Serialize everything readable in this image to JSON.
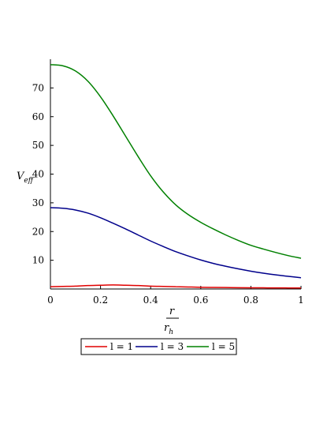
{
  "chart_data": {
    "type": "line",
    "title": "",
    "xlabel": {
      "numerator": "r",
      "denominator": "r",
      "denominator_sub": "h"
    },
    "ylabel": {
      "main": "V",
      "sub": "eff"
    },
    "xlim": [
      0,
      1
    ],
    "ylim": [
      0,
      80
    ],
    "x_ticks": [
      "0",
      "0.2",
      "0.4",
      "0.6",
      "0.8",
      "1"
    ],
    "y_ticks": [
      "10",
      "20",
      "30",
      "40",
      "50",
      "60",
      "70"
    ],
    "x": [
      0,
      0.05,
      0.1,
      0.15,
      0.2,
      0.25,
      0.3,
      0.35,
      0.4,
      0.45,
      0.5,
      0.55,
      0.6,
      0.65,
      0.7,
      0.75,
      0.8,
      0.85,
      0.9,
      0.95,
      1.0
    ],
    "series": [
      {
        "name": "l = 1",
        "color": "#e00000",
        "values": [
          0.8,
          0.9,
          1.0,
          1.2,
          1.3,
          1.4,
          1.3,
          1.2,
          1.0,
          0.9,
          0.8,
          0.7,
          0.6,
          0.55,
          0.5,
          0.45,
          0.42,
          0.4,
          0.38,
          0.36,
          0.35
        ]
      },
      {
        "name": "l = 3",
        "color": "#00008b",
        "values": [
          28.3,
          28.1,
          27.5,
          26.4,
          24.8,
          22.9,
          20.9,
          18.8,
          16.7,
          14.8,
          13.0,
          11.5,
          10.1,
          8.9,
          7.9,
          7.0,
          6.2,
          5.5,
          4.9,
          4.4,
          3.9
        ]
      },
      {
        "name": "l = 5",
        "color": "#008000",
        "values": [
          78.1,
          77.7,
          75.9,
          72.3,
          66.9,
          60.3,
          53.2,
          46.1,
          39.4,
          33.8,
          29.3,
          25.9,
          23.2,
          20.9,
          18.8,
          16.9,
          15.2,
          13.9,
          12.7,
          11.6,
          10.7
        ]
      }
    ],
    "legend_position": "bottom",
    "grid": false
  }
}
